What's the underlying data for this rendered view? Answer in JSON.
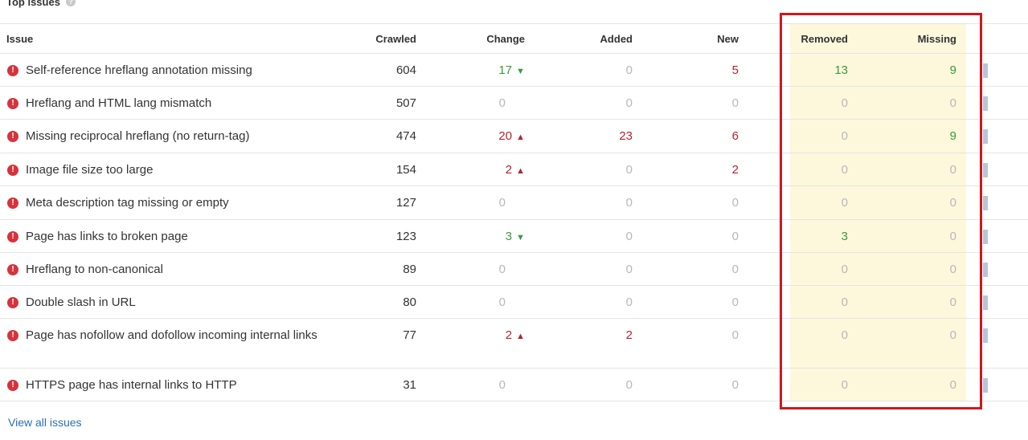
{
  "section": {
    "title": "Top issues",
    "help_icon": "question-circle-icon"
  },
  "table": {
    "headers": {
      "issue": "Issue",
      "crawled": "Crawled",
      "change": "Change",
      "added": "Added",
      "new": "New",
      "removed": "Removed",
      "missing": "Missing"
    },
    "rows": [
      {
        "issue": "Self-reference hreflang annotation missing",
        "crawled": "604",
        "change": "17",
        "change_dir": "down",
        "added": "0",
        "new": "5",
        "removed": "13",
        "missing": "9"
      },
      {
        "issue": "Hreflang and HTML lang mismatch",
        "crawled": "507",
        "change": "0",
        "change_dir": "none",
        "added": "0",
        "new": "0",
        "removed": "0",
        "missing": "0"
      },
      {
        "issue": "Missing reciprocal hreflang (no return-tag)",
        "crawled": "474",
        "change": "20",
        "change_dir": "up",
        "added": "23",
        "new": "6",
        "removed": "0",
        "missing": "9"
      },
      {
        "issue": "Image file size too large",
        "crawled": "154",
        "change": "2",
        "change_dir": "up",
        "added": "0",
        "new": "2",
        "removed": "0",
        "missing": "0"
      },
      {
        "issue": "Meta description tag missing or empty",
        "crawled": "127",
        "change": "0",
        "change_dir": "none",
        "added": "0",
        "new": "0",
        "removed": "0",
        "missing": "0"
      },
      {
        "issue": "Page has links to broken page",
        "crawled": "123",
        "change": "3",
        "change_dir": "down",
        "added": "0",
        "new": "0",
        "removed": "3",
        "missing": "0"
      },
      {
        "issue": "Hreflang to non-canonical",
        "crawled": "89",
        "change": "0",
        "change_dir": "none",
        "added": "0",
        "new": "0",
        "removed": "0",
        "missing": "0"
      },
      {
        "issue": "Double slash in URL",
        "crawled": "80",
        "change": "0",
        "change_dir": "none",
        "added": "0",
        "new": "0",
        "removed": "0",
        "missing": "0"
      },
      {
        "issue": "Page has nofollow and dofollow incoming internal links",
        "crawled": "77",
        "change": "2",
        "change_dir": "up",
        "added": "2",
        "new": "0",
        "removed": "0",
        "missing": "0"
      },
      {
        "issue": "HTTPS page has internal links to HTTP",
        "crawled": "31",
        "change": "0",
        "change_dir": "none",
        "added": "0",
        "new": "0",
        "removed": "0",
        "missing": "0"
      }
    ]
  },
  "footer": {
    "view_all_label": "View all issues"
  },
  "icons": {
    "issue_icon": "error-exclamation-icon",
    "up_arrow": "triangle-up-icon",
    "down_arrow": "triangle-down-icon"
  },
  "colors": {
    "accent_red": "#d6333d",
    "positive_green": "#3a9a3e",
    "negative_red": "#b3242f",
    "muted_grey": "#b8b8b8",
    "highlight_yellow": "#fdf7dc",
    "box_red": "#d1171b",
    "link_blue": "#2a6fb5"
  }
}
